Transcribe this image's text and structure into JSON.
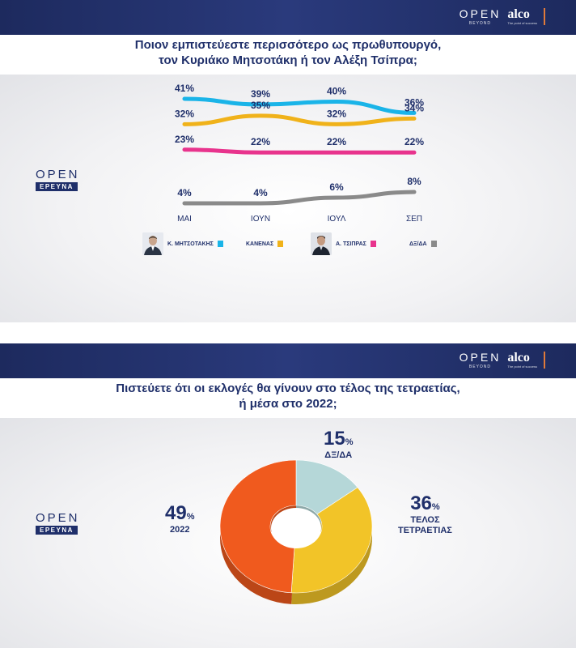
{
  "header": {
    "open_logo": "OPEN",
    "open_sub": "BEYOND",
    "alco_logo": "alco",
    "alco_sub": "The point of success"
  },
  "side_logo": {
    "text": "OPEN",
    "badge": "ΕΡΕΥΝΑ"
  },
  "colors": {
    "header": "#1d2a5e",
    "title": "#1f2f6a",
    "cyan": "#1ab4e8",
    "yellow": "#f0b21a",
    "magenta": "#e8348d",
    "gray": "#8a8a8a",
    "pie_orange": "#f05a1e",
    "pie_yellow": "#f2c428",
    "pie_ltblue": "#b5d7d8"
  },
  "chart1": {
    "title_line1": "Ποιον εμπιστεύεστε περισσότερο ως πρωθυπουργό,",
    "title_line2": "τον Κυριάκο Μητσοτάκη ή τον Αλέξη Τσίπρα;",
    "legend": [
      {
        "label": "Κ. ΜΗΤΣΟΤΑΚΗΣ",
        "color": "#1ab4e8",
        "avatar": true
      },
      {
        "label": "ΚΑΝΕΝΑΣ",
        "color": "#f0b21a",
        "avatar": false
      },
      {
        "label": "Α. ΤΣΙΠΡΑΣ",
        "color": "#e8348d",
        "avatar": true
      },
      {
        "label": "ΔΞ/ΔΑ",
        "color": "#8a8a8a",
        "avatar": false
      }
    ]
  },
  "chart_data": [
    {
      "type": "line",
      "title": "Ποιον εμπιστεύεστε περισσότερο ως πρωθυπουργό, τον Κυριάκο Μητσοτάκη ή τον Αλέξη Τσίπρα;",
      "categories": [
        "ΜΑΙ",
        "ΙΟΥΝ",
        "ΙΟΥΛ",
        "ΣΕΠ"
      ],
      "series": [
        {
          "name": "Κ. ΜΗΤΣΟΤΑΚΗΣ",
          "values": [
            41,
            39,
            40,
            36
          ],
          "labels": [
            "41%",
            "39%",
            "40%",
            "36%"
          ],
          "color": "#1ab4e8"
        },
        {
          "name": "ΚΑΝΕΝΑΣ",
          "values": [
            32,
            35,
            32,
            34
          ],
          "labels": [
            "32%",
            "35%",
            "32%",
            "34%"
          ],
          "color": "#f0b21a"
        },
        {
          "name": "Α. ΤΣΙΠΡΑΣ",
          "values": [
            23,
            22,
            22,
            22
          ],
          "labels": [
            "23%",
            "22%",
            "22%",
            "22%"
          ],
          "color": "#e8348d"
        },
        {
          "name": "ΔΞ/ΔΑ",
          "values": [
            4,
            4,
            6,
            8
          ],
          "labels": [
            "4%",
            "4%",
            "6%",
            "8%"
          ],
          "color": "#8a8a8a"
        }
      ],
      "legend_position": "bottom",
      "grid": false
    },
    {
      "type": "pie",
      "title": "Πιστεύετε ότι οι εκλογές θα γίνουν στο τέλος της τετραετίας, ή μέσα στο 2022;",
      "slices": [
        {
          "name": "ΔΞ/ΔΑ",
          "value": 15,
          "num": "15",
          "pct": "%",
          "caption": [
            "ΔΞ/ΔΑ"
          ],
          "color": "#b5d7d8"
        },
        {
          "name": "ΤΕΛΟΣ ΤΕΤΡΑΕΤΙΑΣ",
          "value": 36,
          "num": "36",
          "pct": "%",
          "caption": [
            "ΤΕΛΟΣ",
            "ΤΕΤΡΑΕΤΙΑΣ"
          ],
          "color": "#f2c428"
        },
        {
          "name": "2022",
          "value": 49,
          "num": "49",
          "pct": "%",
          "caption": [
            "2022"
          ],
          "color": "#f05a1e"
        }
      ]
    }
  ],
  "chart2": {
    "title_line1": "Πιστεύετε ότι οι εκλογές θα γίνουν στο τέλος της τετραετίας,",
    "title_line2": "ή μέσα στο 2022;"
  }
}
